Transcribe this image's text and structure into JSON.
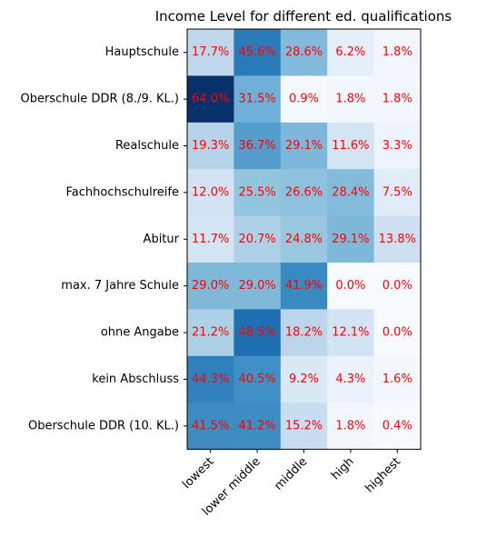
{
  "chart_data": {
    "type": "heatmap",
    "title": "Income Level for different ed. qualifications",
    "x_categories": [
      "lowest",
      "lower middle",
      "middle",
      "high",
      "highest"
    ],
    "y_categories": [
      "Hauptschule",
      "Oberschule DDR (8./9. KL.)",
      "Realschule",
      "Fachhochschulreife",
      "Abitur",
      "max. 7 Jahre Schule",
      "ohne Angabe",
      "kein Abschluss",
      "Oberschule DDR (10. KL.)"
    ],
    "values": [
      [
        17.7,
        45.6,
        28.6,
        6.2,
        1.8
      ],
      [
        64.0,
        31.5,
        0.9,
        1.8,
        1.8
      ],
      [
        19.3,
        36.7,
        29.1,
        11.6,
        3.3
      ],
      [
        12.0,
        25.5,
        26.6,
        28.4,
        7.5
      ],
      [
        11.7,
        20.7,
        24.8,
        29.1,
        13.8
      ],
      [
        29.0,
        29.0,
        41.9,
        0.0,
        0.0
      ],
      [
        21.2,
        48.5,
        18.2,
        12.1,
        0.0
      ],
      [
        44.3,
        40.5,
        9.2,
        4.3,
        1.6
      ],
      [
        41.5,
        41.2,
        15.2,
        1.8,
        0.4
      ]
    ],
    "value_suffix": "%",
    "colormap": "Blues",
    "label_color": "#ff0000",
    "grid": false
  }
}
